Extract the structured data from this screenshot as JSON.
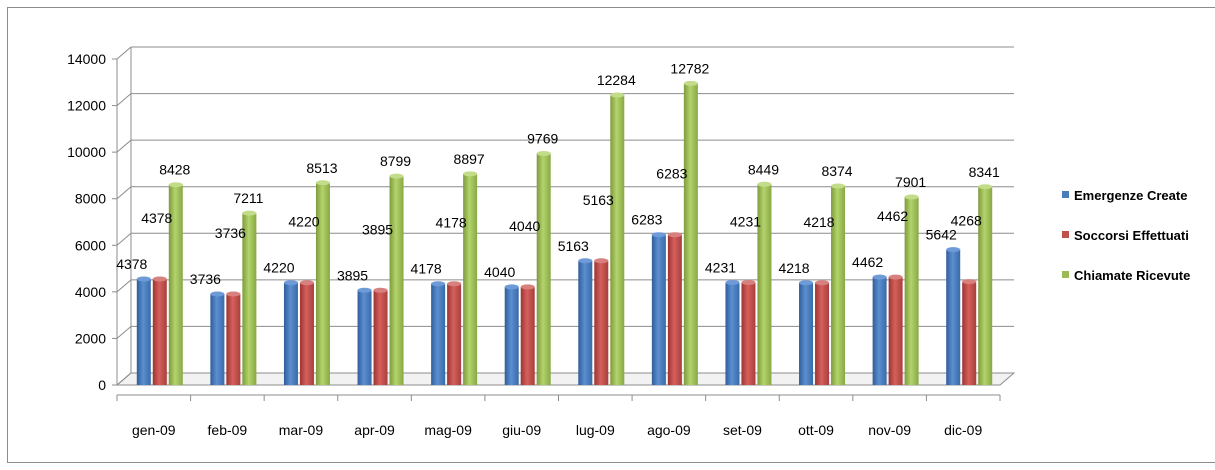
{
  "chart_data": {
    "type": "bar",
    "title": "",
    "xlabel": "",
    "ylabel": "",
    "categories": [
      "gen-09",
      "feb-09",
      "mar-09",
      "apr-09",
      "mag-09",
      "giu-09",
      "lug-09",
      "ago-09",
      "set-09",
      "ott-09",
      "nov-09",
      "dic-09"
    ],
    "series": [
      {
        "name": "Emergenze Create",
        "color": "#4a7ebb",
        "values": [
          4378,
          3736,
          4220,
          3895,
          4178,
          4040,
          5163,
          6283,
          4231,
          4218,
          4462,
          5642
        ]
      },
      {
        "name": "Soccorsi Effettuati",
        "color": "#c0504d",
        "values": [
          4378,
          3736,
          4220,
          3895,
          4178,
          4040,
          5163,
          6283,
          4231,
          4218,
          4462,
          4268
        ]
      },
      {
        "name": "Chiamate Ricevute",
        "color": "#9bbb59",
        "values": [
          8428,
          7211,
          8513,
          8799,
          8897,
          9769,
          12284,
          12782,
          8449,
          8374,
          7901,
          8341
        ]
      }
    ],
    "ylim": [
      0,
      14000
    ],
    "yticks": [
      0,
      2000,
      4000,
      6000,
      8000,
      10000,
      12000,
      14000
    ],
    "grid": true,
    "legend_position": "right",
    "data_labels": true
  }
}
